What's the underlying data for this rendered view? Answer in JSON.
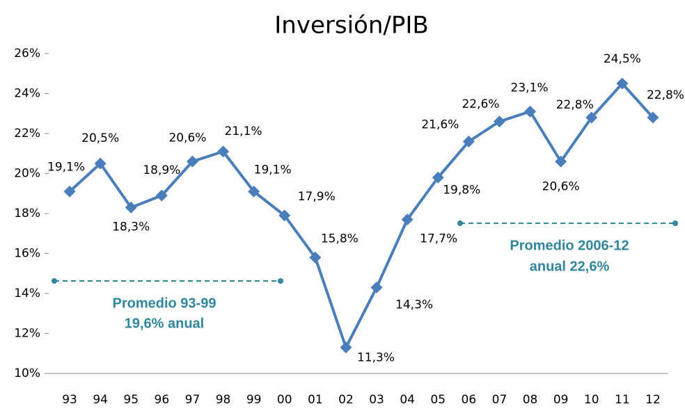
{
  "chart_data": {
    "type": "line",
    "title": "Inversión/PIB",
    "categories": [
      "93",
      "94",
      "95",
      "96",
      "97",
      "98",
      "99",
      "00",
      "01",
      "02",
      "03",
      "04",
      "05",
      "06",
      "07",
      "08",
      "09",
      "10",
      "11",
      "12"
    ],
    "series": [
      {
        "name": "Inversión/PIB",
        "color": "#4a7ebb",
        "values": [
          19.1,
          20.5,
          18.3,
          18.9,
          20.6,
          21.1,
          19.1,
          17.9,
          15.8,
          11.3,
          14.3,
          17.7,
          19.8,
          21.6,
          22.6,
          23.1,
          20.6,
          22.8,
          24.5,
          22.8
        ],
        "value_labels": [
          "19,1%",
          "20,5%",
          "18,3%",
          "18,9%",
          "20,6%",
          "21,1%",
          "19,1%",
          "17,9%",
          "15,8%",
          "11,3%",
          "14,3%",
          "17,7%",
          "19,8%",
          "21,6%",
          "22,6%",
          "23,1%",
          "20,6%",
          "22,8%",
          "24,5%",
          "22,8%"
        ]
      }
    ],
    "ylim": [
      10,
      26
    ],
    "yticks": [
      {
        "value": 10,
        "label": "10%"
      },
      {
        "value": 12,
        "label": "12%"
      },
      {
        "value": 14,
        "label": "14%"
      },
      {
        "value": 16,
        "label": "16%"
      },
      {
        "value": 18,
        "label": "18%"
      },
      {
        "value": 20,
        "label": "20%"
      },
      {
        "value": 22,
        "label": "22%"
      },
      {
        "value": 24,
        "label": "24%"
      },
      {
        "value": 26,
        "label": "26%"
      }
    ],
    "annotations": [
      "Promedio 93-99",
      "19,6% anual",
      "Promedio 2006-12",
      "anual 22,6%"
    ]
  }
}
